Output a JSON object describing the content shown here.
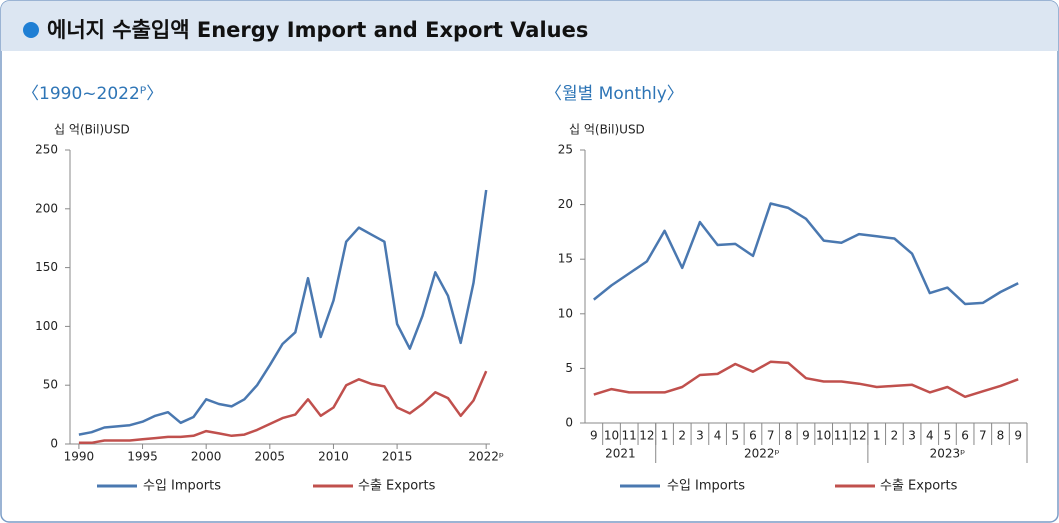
{
  "header": {
    "title": "에너지 수출입액 Energy Import and Export Values"
  },
  "chart_data": [
    {
      "type": "line",
      "subtitle": "〈1990~2022ᴾ〉",
      "y_label": "십 억(Bil)USD",
      "x": [
        1990,
        1991,
        1992,
        1993,
        1994,
        1995,
        1996,
        1997,
        1998,
        1999,
        2000,
        2001,
        2002,
        2003,
        2004,
        2005,
        2006,
        2007,
        2008,
        2009,
        2010,
        2011,
        2012,
        2013,
        2014,
        2015,
        2016,
        2017,
        2018,
        2019,
        2020,
        2021,
        2022
      ],
      "xlim": [
        1989.3,
        2022.3
      ],
      "xticks": [
        1990,
        1995,
        2000,
        2005,
        2010,
        2015,
        {
          "value": 2022,
          "label": "2022ᵖ"
        }
      ],
      "ylim": [
        0,
        250
      ],
      "yticks": [
        0,
        50,
        100,
        150,
        200,
        250
      ],
      "series": [
        {
          "name": "수입 Imports",
          "color": "#4a78b0",
          "values": [
            8,
            10,
            14,
            15,
            16,
            19,
            24,
            27,
            18,
            23,
            38,
            34,
            32,
            38,
            50,
            67,
            85,
            95,
            141,
            91,
            122,
            172,
            184,
            178,
            172,
            102,
            81,
            109,
            146,
            126,
            86,
            137,
            216
          ]
        },
        {
          "name": "수출 Exports",
          "color": "#c0504d",
          "values": [
            1,
            1,
            3,
            3,
            3,
            4,
            5,
            6,
            6,
            7,
            11,
            9,
            7,
            8,
            12,
            17,
            22,
            25,
            38,
            24,
            31,
            50,
            55,
            51,
            49,
            31,
            26,
            34,
            44,
            39,
            24,
            37,
            62
          ]
        }
      ]
    },
    {
      "type": "line",
      "subtitle": "〈월별 Monthly〉",
      "y_label": "십 억(Bil)USD",
      "categories": [
        "9",
        "10",
        "11",
        "12",
        "1",
        "2",
        "3",
        "4",
        "5",
        "6",
        "7",
        "8",
        "9",
        "10",
        "11",
        "12",
        "1",
        "2",
        "3",
        "4",
        "5",
        "6",
        "7",
        "8",
        "9"
      ],
      "x_groups": [
        {
          "label": "2021",
          "count": 4
        },
        {
          "label": "2022ᵖ",
          "count": 12
        },
        {
          "label": "2023ᵖ",
          "count": 9
        }
      ],
      "ylim": [
        0,
        25
      ],
      "yticks": [
        0,
        5,
        10,
        15,
        20,
        25
      ],
      "series": [
        {
          "name": "수입 Imports",
          "color": "#4a78b0",
          "values": [
            11.3,
            12.6,
            13.7,
            14.8,
            17.6,
            14.2,
            18.4,
            16.3,
            16.4,
            15.3,
            20.1,
            19.7,
            18.7,
            16.7,
            16.5,
            17.3,
            17.1,
            16.9,
            15.5,
            11.9,
            12.4,
            10.9,
            11.0,
            12.0,
            12.8
          ]
        },
        {
          "name": "수출 Exports",
          "color": "#c0504d",
          "values": [
            2.6,
            3.1,
            2.8,
            2.8,
            2.8,
            3.3,
            4.4,
            4.5,
            5.4,
            4.7,
            5.6,
            5.5,
            4.1,
            3.8,
            3.8,
            3.6,
            3.3,
            3.4,
            3.5,
            2.8,
            3.3,
            2.4,
            2.9,
            3.4,
            4.0
          ]
        }
      ]
    }
  ]
}
